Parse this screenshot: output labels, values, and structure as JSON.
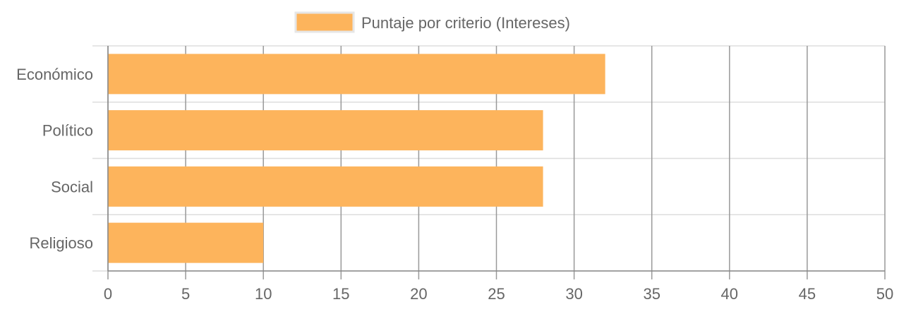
{
  "chart_data": {
    "type": "bar",
    "orientation": "horizontal",
    "categories": [
      "Económico",
      "Político",
      "Social",
      "Religioso"
    ],
    "series": [
      {
        "name": "Puntaje por criterio (Intereses)",
        "values": [
          32,
          28,
          28,
          10
        ],
        "color": "#fdb45c"
      }
    ],
    "xlim": [
      0,
      50
    ],
    "x_ticks": [
      "0",
      "5",
      "10",
      "15",
      "20",
      "25",
      "30",
      "35",
      "40",
      "45",
      "50"
    ],
    "grid": true,
    "legend_position": "top"
  },
  "colors": {
    "bar_fill": "#fdb45c",
    "grid_vertical": "#999999",
    "grid_horizontal": "#dddddd",
    "axis": "#888888",
    "text": "#666666"
  }
}
